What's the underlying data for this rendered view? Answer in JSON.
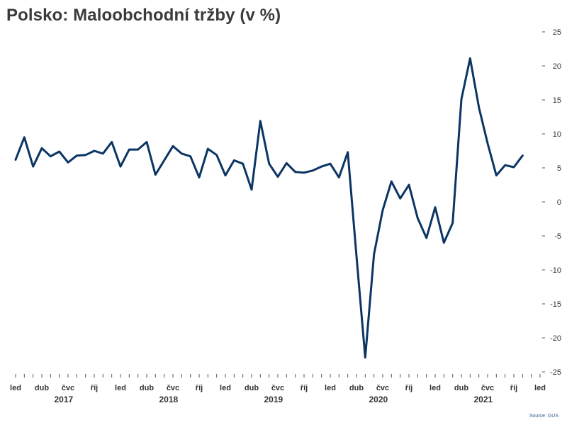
{
  "colors": {
    "line": "#0b3563",
    "axis": "#555555",
    "text": "#333333",
    "source": "#2f5b8f"
  },
  "source": "Source: GUS",
  "chart_data": {
    "type": "line",
    "title": "Polsko: Maloobchodní tržby (v %)",
    "ylim": [
      -25,
      25
    ],
    "y_ticks": [
      25,
      20,
      15,
      10,
      5,
      0,
      -5,
      -10,
      -15,
      -20,
      -25
    ],
    "y_axis_side": "right",
    "grid": false,
    "month_labels": [
      "led",
      "dub",
      "čvc",
      "říj"
    ],
    "year_labels": [
      "2017",
      "2018",
      "2019",
      "2020",
      "2021"
    ],
    "x_start": "2017-01",
    "x_end": "2022-01",
    "series": [
      {
        "x": [
          "2017-01",
          "2017-02",
          "2017-03",
          "2017-04",
          "2017-05",
          "2017-06",
          "2017-07",
          "2017-08",
          "2017-09",
          "2017-10",
          "2017-11",
          "2017-12",
          "2018-01",
          "2018-02",
          "2018-03",
          "2018-04",
          "2018-05",
          "2018-06",
          "2018-07",
          "2018-08",
          "2018-09",
          "2018-10",
          "2018-11",
          "2018-12",
          "2019-01",
          "2019-02",
          "2019-03",
          "2019-04",
          "2019-05",
          "2019-06",
          "2019-07",
          "2019-08",
          "2019-09",
          "2019-10",
          "2019-11",
          "2019-12",
          "2020-01",
          "2020-02",
          "2020-03",
          "2020-04",
          "2020-05",
          "2020-06",
          "2020-07",
          "2020-08",
          "2020-09",
          "2020-10",
          "2020-11",
          "2020-12",
          "2021-01",
          "2021-02",
          "2021-03",
          "2021-04",
          "2021-05",
          "2021-06",
          "2021-07",
          "2021-08",
          "2021-09",
          "2021-10",
          "2021-11"
        ],
        "values": [
          6.2,
          9.5,
          5.2,
          7.9,
          6.7,
          7.4,
          5.8,
          6.8,
          6.9,
          7.5,
          7.1,
          8.8,
          5.2,
          7.7,
          7.7,
          8.8,
          4.0,
          6.1,
          8.2,
          7.1,
          6.7,
          3.6,
          7.8,
          6.9,
          3.9,
          6.1,
          5.6,
          1.8,
          11.9,
          5.6,
          3.7,
          5.7,
          4.4,
          4.3,
          4.6,
          5.2,
          5.6,
          3.6,
          7.3,
          -8.0,
          -22.9,
          -7.7,
          -1.2,
          3.0,
          0.5,
          2.5,
          -2.4,
          -5.3,
          -0.8,
          -6.0,
          -3.1,
          15.1,
          21.1,
          13.9,
          8.6,
          3.9,
          5.4,
          5.1,
          6.8
        ]
      }
    ]
  }
}
